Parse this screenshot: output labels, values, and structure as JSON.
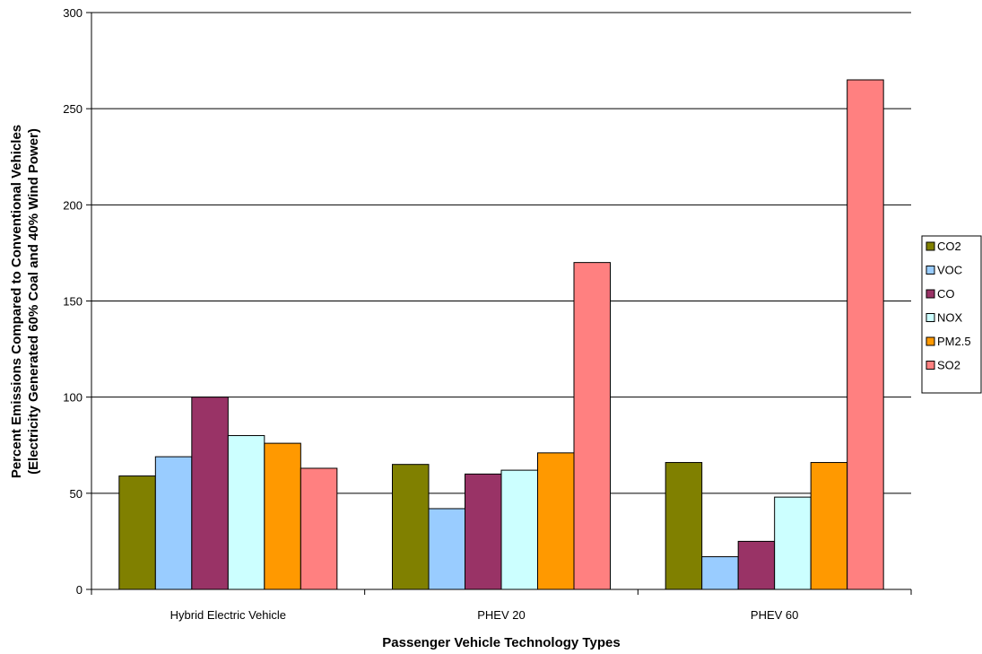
{
  "chart_data": {
    "type": "bar",
    "categories": [
      "Hybrid Electric Vehicle",
      "PHEV 20",
      "PHEV 60"
    ],
    "series": [
      {
        "name": "CO2",
        "color": "#808000",
        "values": [
          59,
          65,
          66
        ]
      },
      {
        "name": "VOC",
        "color": "#99ccff",
        "values": [
          69,
          42,
          17
        ]
      },
      {
        "name": "CO",
        "color": "#993366",
        "values": [
          100,
          60,
          25
        ]
      },
      {
        "name": "NOX",
        "color": "#ccffff",
        "values": [
          80,
          62,
          48
        ]
      },
      {
        "name": "PM2.5",
        "color": "#ff9900",
        "values": [
          76,
          71,
          66
        ]
      },
      {
        "name": "SO2",
        "color": "#ff8080",
        "values": [
          63,
          170,
          265
        ]
      }
    ],
    "xlabel": "Passenger Vehicle Technology Types",
    "ylabel_line1": "Percent Emissions Compared to Conventional Vehicles",
    "ylabel_line2": "(Electricity Generated 60% Coal and 40% Wind Power)",
    "ylim": [
      0,
      300
    ],
    "yticks": [
      0,
      50,
      100,
      150,
      200,
      250,
      300
    ],
    "grid": true,
    "legend_position": "right"
  }
}
